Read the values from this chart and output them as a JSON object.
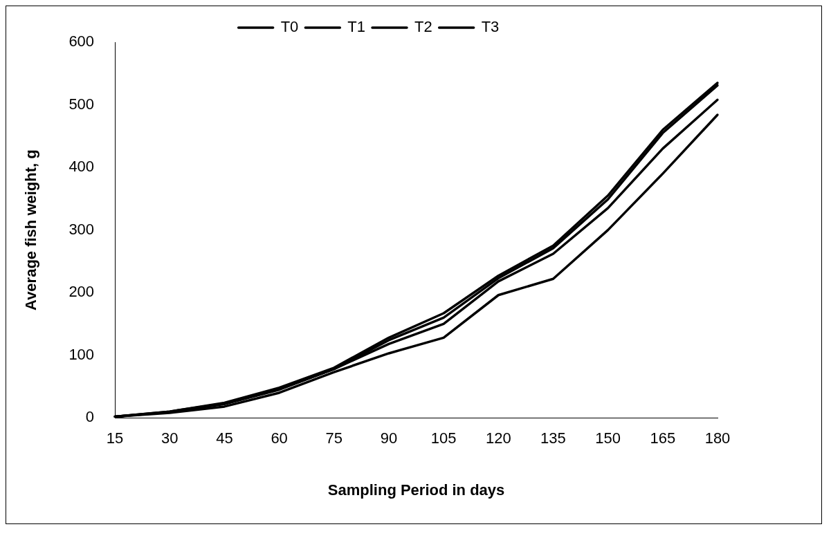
{
  "chart_data": {
    "type": "line",
    "xlabel": "Sampling Period in days",
    "ylabel": "Average fish weight, g",
    "categories": [
      "15",
      "30",
      "45",
      "60",
      "75",
      "90",
      "105",
      "120",
      "135",
      "150",
      "165",
      "180"
    ],
    "series": [
      {
        "name": "T0",
        "color": "#000000",
        "values": [
          2,
          8,
          18,
          40,
          73,
          103,
          128,
          196,
          222,
          300,
          390,
          484
        ]
      },
      {
        "name": "T1",
        "color": "#000000",
        "values": [
          2,
          9,
          22,
          45,
          78,
          118,
          150,
          218,
          262,
          335,
          430,
          508
        ]
      },
      {
        "name": "T2",
        "color": "#000000",
        "values": [
          2,
          10,
          24,
          48,
          80,
          128,
          167,
          227,
          275,
          355,
          460,
          535
        ]
      },
      {
        "name": "T3",
        "color": "#000000",
        "values": [
          2,
          10,
          23,
          46,
          78,
          124,
          160,
          223,
          271,
          349,
          455,
          531
        ]
      }
    ],
    "ylim": [
      0,
      600
    ],
    "yticks": [
      0,
      100,
      200,
      300,
      400,
      500,
      600
    ],
    "grid": false,
    "legend": "top",
    "marker": "none",
    "line_style": "solid"
  }
}
